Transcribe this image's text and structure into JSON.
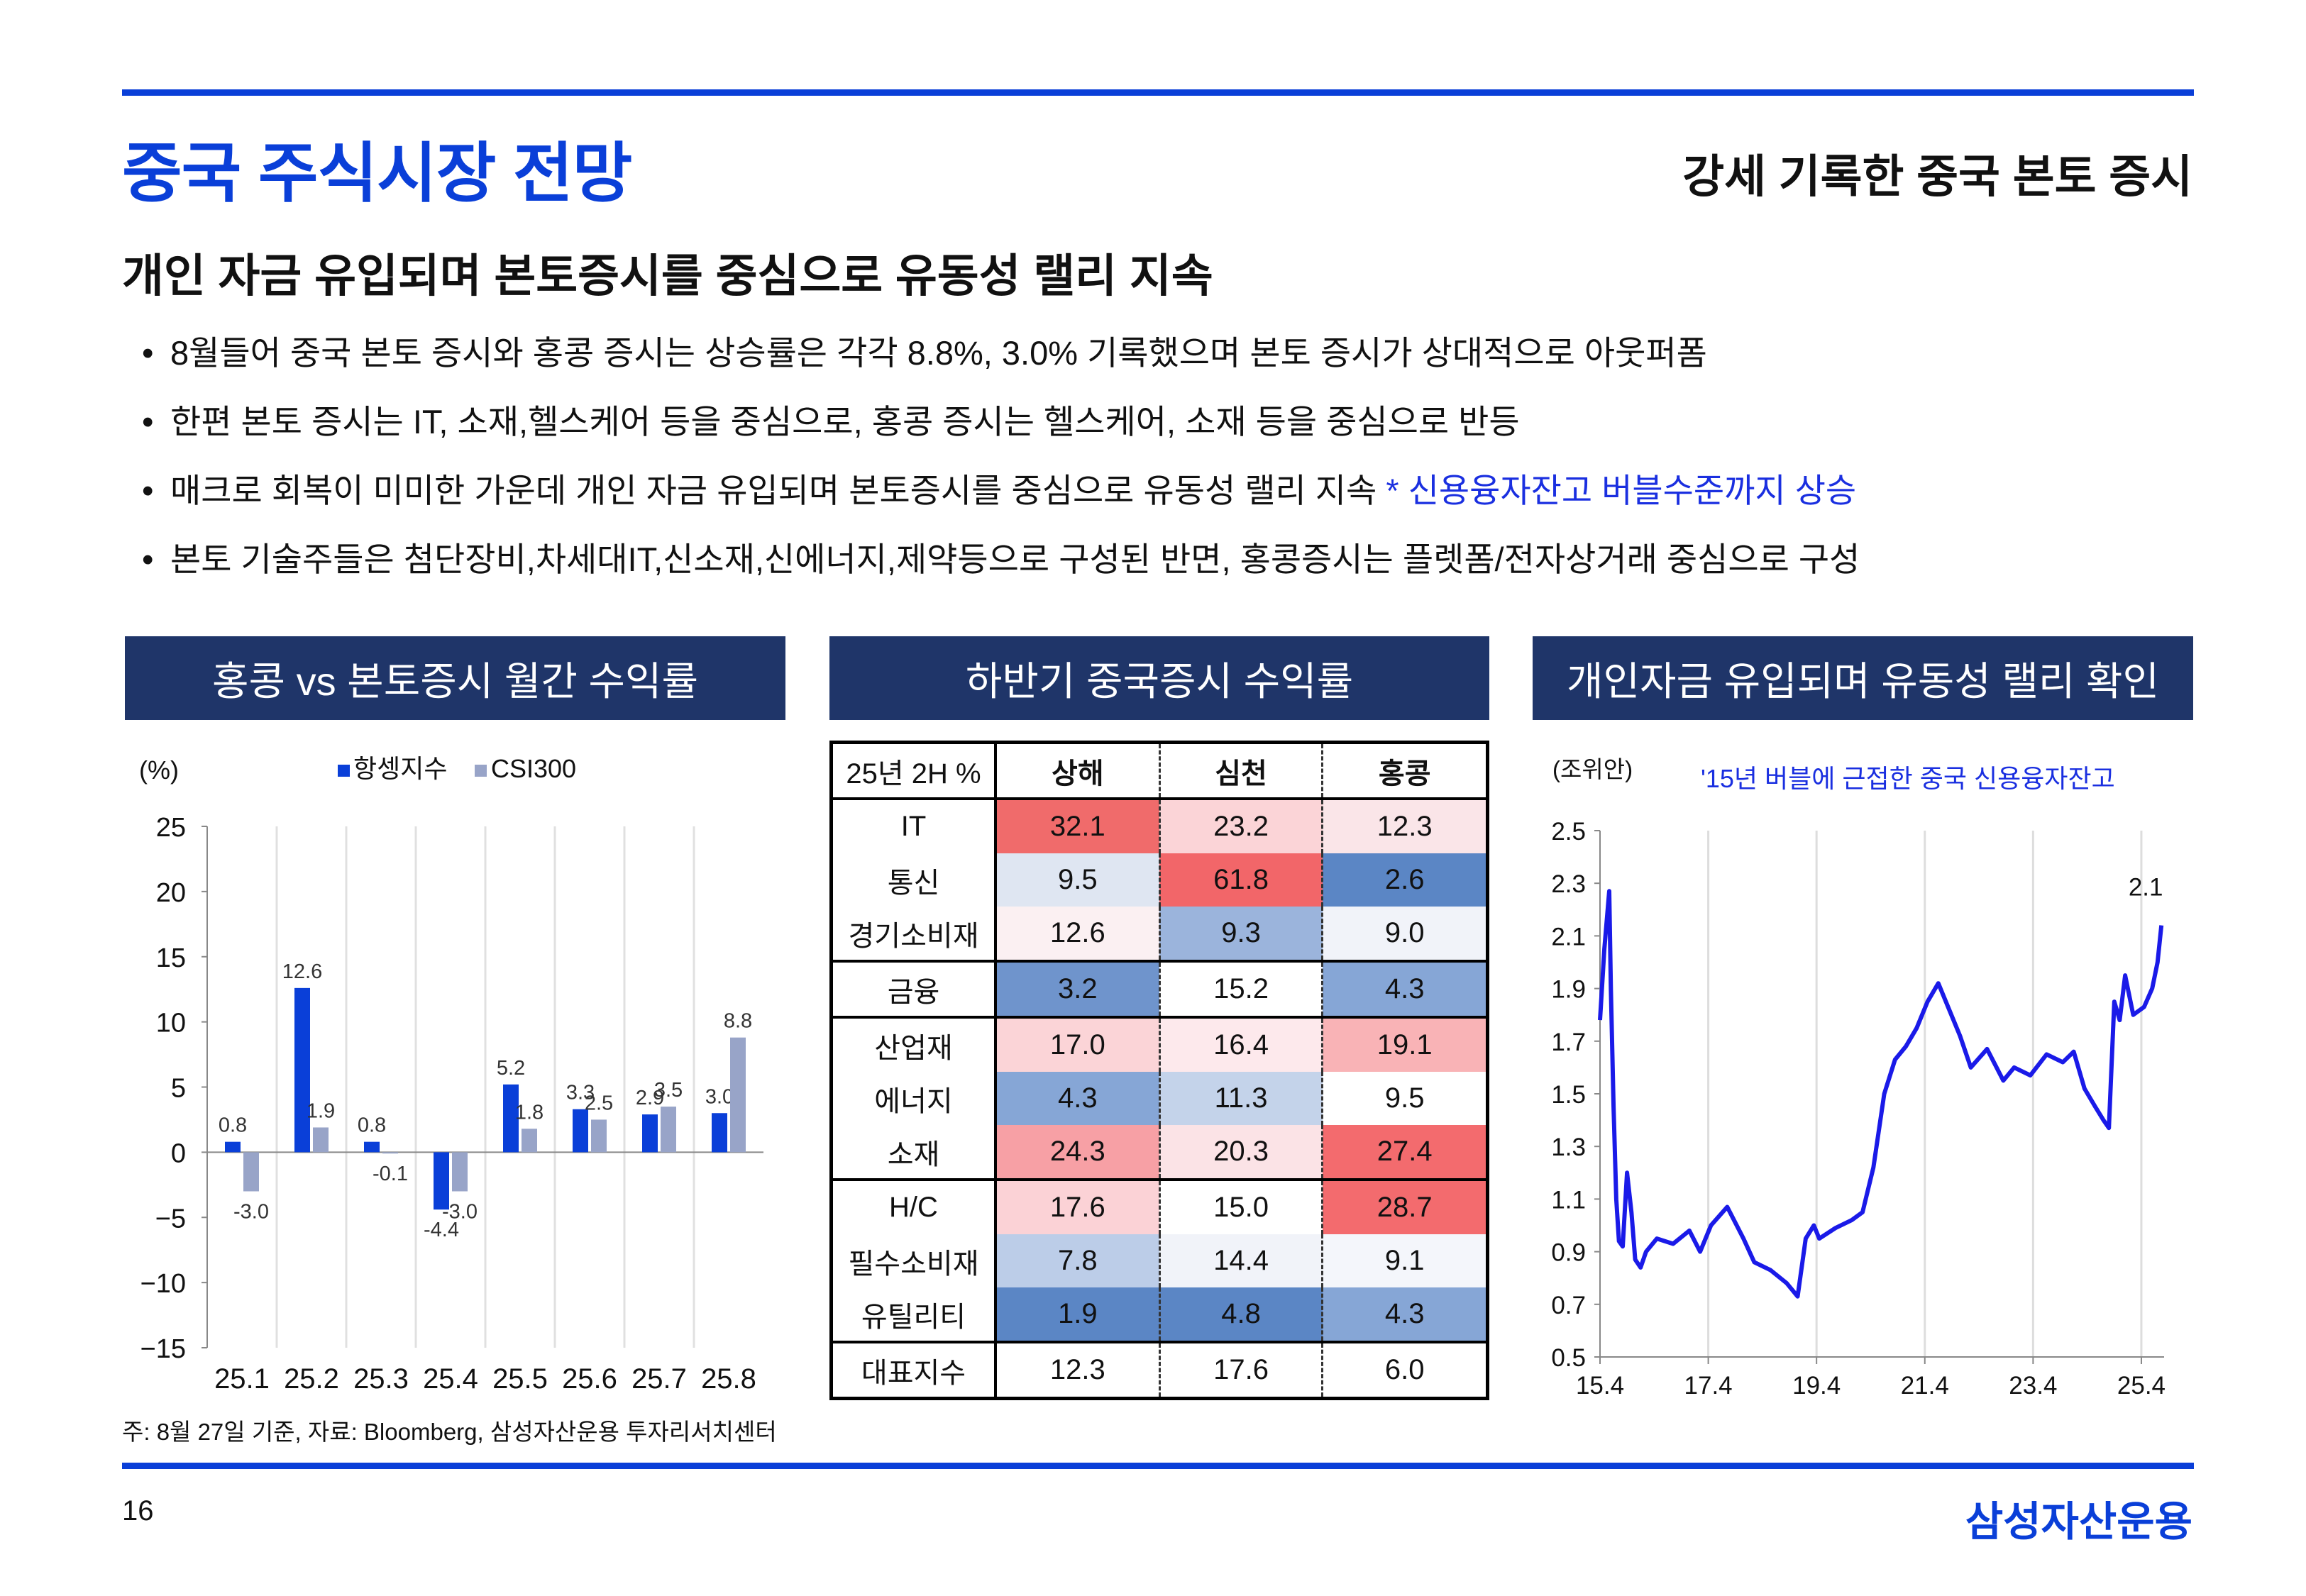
{
  "header": {
    "title": "중국 주식시장 전망",
    "subtitle": "강세 기록한 중국 본토 증시"
  },
  "headline": "개인 자금 유입되며 본토증시를 중심으로 유동성 랠리 지속",
  "bullets": [
    {
      "text": "8월들어 중국 본토 증시와 홍콩 증시는 상승률은 각각 8.8%, 3.0% 기록했으며 본토 증시가 상대적으로 아웃퍼폼",
      "note": ""
    },
    {
      "text": "한편 본토 증시는 IT, 소재,헬스케어 등을 중심으로, 홍콩 증시는 헬스케어, 소재 등을 중심으로 반등",
      "note": ""
    },
    {
      "text": "매크로 회복이 미미한 가운데 개인 자금 유입되며 본토증시를 중심으로 유동성 랠리 지속 ",
      "note": "* 신용융자잔고 버블수준까지 상승"
    },
    {
      "text": "본토 기술주들은 첨단장비,차세대IT,신소재,신에너지,제약등으로 구성된 반면, 홍콩증시는 플렛폼/전자상거래 중심으로 구성",
      "note": ""
    }
  ],
  "panels": {
    "left": "홍콩 vs 본토증시 월간 수익률",
    "middle": "하반기 중국증시 수익률",
    "right": "개인자금 유입되며 유동성 랠리 확인"
  },
  "colors": {
    "brand": "#0a3fd8",
    "panel_header": "#1f3569",
    "hsi_bar": "#0a3fd8",
    "csi_bar": "#98a4c8",
    "line": "#1a1ae8"
  },
  "chart_data": [
    {
      "type": "bar",
      "title": "홍콩 vs 본토증시 월간 수익률",
      "ylabel": "(%)",
      "ylim": [
        -15,
        25
      ],
      "yticks": [
        25,
        20,
        15,
        10,
        5,
        0,
        -5,
        -10,
        -15
      ],
      "ytick_labels": [
        "25",
        "20",
        "15",
        "10",
        "5",
        "0",
        "−5",
        "−10",
        "−15"
      ],
      "categories": [
        "25.1",
        "25.2",
        "25.3",
        "25.4",
        "25.5",
        "25.6",
        "25.7",
        "25.8"
      ],
      "series": [
        {
          "name": "항셍지수",
          "values": [
            0.8,
            12.6,
            0.8,
            -4.4,
            5.2,
            3.3,
            2.9,
            3.0
          ],
          "labels": [
            "0.8",
            "12.6",
            "0.8",
            "-4.4",
            "5.2",
            "3.3",
            "2.9",
            "3.0"
          ]
        },
        {
          "name": "CSI300",
          "values": [
            -3.0,
            1.9,
            -0.1,
            -3.0,
            1.8,
            2.5,
            3.5,
            8.8
          ],
          "labels": [
            "-3.0",
            "1.9",
            "-0.1",
            "-3.0",
            "1.8",
            "2.5",
            "3.5",
            "8.8"
          ]
        }
      ],
      "legend": "top"
    },
    {
      "type": "table",
      "title": "하반기 중국증시 수익률",
      "corner": "25년 2H %",
      "columns": [
        "상해",
        "심천",
        "홍콩"
      ],
      "rows": [
        {
          "label": "IT",
          "values": [
            "32.1",
            "23.2",
            "12.3"
          ],
          "colors": [
            "#f06b6b",
            "#fbd4d7",
            "#fae5e8"
          ]
        },
        {
          "label": "통신",
          "values": [
            "9.5",
            "61.8",
            "2.6"
          ],
          "colors": [
            "#dfe6f2",
            "#f26669",
            "#5b86c5"
          ]
        },
        {
          "label": "경기소비재",
          "values": [
            "12.6",
            "9.3",
            "9.0"
          ],
          "colors": [
            "#fbf0f2",
            "#9bb4dc",
            "#f1f3f9"
          ]
        },
        {
          "label": "금융",
          "values": [
            "3.2",
            "15.2",
            "4.3"
          ],
          "colors": [
            "#6f94cc",
            "#ffffff",
            "#86a6d6"
          ]
        },
        {
          "label": "산업재",
          "values": [
            "17.0",
            "16.4",
            "19.1"
          ],
          "colors": [
            "#fbd4d7",
            "#fde9ec",
            "#f9b3b6"
          ]
        },
        {
          "label": "에너지",
          "values": [
            "4.3",
            "11.3",
            "9.5"
          ],
          "colors": [
            "#86a6d6",
            "#c4d3ea",
            "#ffffff"
          ]
        },
        {
          "label": "소재",
          "values": [
            "24.3",
            "20.3",
            "27.4"
          ],
          "colors": [
            "#f7a0a5",
            "#fbe3e6",
            "#f36b6e"
          ]
        },
        {
          "label": "H/C",
          "values": [
            "17.6",
            "15.0",
            "28.7"
          ],
          "colors": [
            "#fbd2d6",
            "#ffffff",
            "#f36b6e"
          ]
        },
        {
          "label": "필수소비재",
          "values": [
            "7.8",
            "14.4",
            "9.1"
          ],
          "colors": [
            "#bccde8",
            "#f1f3f9",
            "#f4f6fb"
          ]
        },
        {
          "label": "유틸리티",
          "values": [
            "1.9",
            "4.8",
            "4.3"
          ],
          "colors": [
            "#5b86c5",
            "#5b86c5",
            "#86a6d6"
          ]
        },
        {
          "label": "대표지수",
          "values": [
            "12.3",
            "17.6",
            "6.0"
          ],
          "colors": [
            "#ffffff",
            "#ffffff",
            "#ffffff"
          ]
        }
      ]
    },
    {
      "type": "line",
      "title": "개인자금 유입되며 유동성 랠리 확인",
      "ylabel": "(조위안)",
      "annotation": "'15년 버블에 근접한 중국 신용융자잔고",
      "end_label": "2.1",
      "ylim": [
        0.5,
        2.5
      ],
      "yticks": [
        "2.5",
        "2.3",
        "2.1",
        "1.9",
        "1.7",
        "1.5",
        "1.3",
        "1.1",
        "0.9",
        "0.7",
        "0.5"
      ],
      "xlim": [
        2015.25,
        2025.67
      ],
      "xticks": [
        "15.4",
        "17.4",
        "19.4",
        "21.4",
        "23.4",
        "25.4"
      ],
      "series": [
        {
          "name": "신용융자잔고",
          "x": [
            2015.25,
            2015.33,
            2015.42,
            2015.45,
            2015.5,
            2015.55,
            2015.6,
            2015.67,
            2015.75,
            2015.83,
            2015.9,
            2016.0,
            2016.1,
            2016.3,
            2016.6,
            2016.9,
            2017.1,
            2017.3,
            2017.6,
            2017.9,
            2018.1,
            2018.4,
            2018.7,
            2018.9,
            2019.05,
            2019.2,
            2019.3,
            2019.6,
            2019.9,
            2020.1,
            2020.3,
            2020.5,
            2020.7,
            2020.9,
            2021.1,
            2021.3,
            2021.5,
            2021.7,
            2021.9,
            2022.1,
            2022.4,
            2022.7,
            2022.9,
            2023.2,
            2023.5,
            2023.8,
            2024.0,
            2024.2,
            2024.4,
            2024.55,
            2024.65,
            2024.75,
            2024.85,
            2024.95,
            2025.1,
            2025.3,
            2025.45,
            2025.55,
            2025.62
          ],
          "y": [
            1.78,
            2.05,
            2.27,
            1.9,
            1.45,
            1.1,
            0.94,
            0.92,
            1.2,
            1.05,
            0.87,
            0.84,
            0.9,
            0.95,
            0.93,
            0.98,
            0.9,
            1.0,
            1.07,
            0.95,
            0.86,
            0.83,
            0.78,
            0.73,
            0.95,
            1.0,
            0.95,
            0.99,
            1.02,
            1.05,
            1.22,
            1.5,
            1.63,
            1.68,
            1.75,
            1.85,
            1.92,
            1.82,
            1.72,
            1.6,
            1.67,
            1.55,
            1.6,
            1.57,
            1.65,
            1.62,
            1.66,
            1.52,
            1.45,
            1.4,
            1.37,
            1.85,
            1.78,
            1.95,
            1.8,
            1.83,
            1.9,
            2.0,
            2.14
          ]
        }
      ]
    }
  ],
  "footnote": "주: 8월 27일 기준, 자료: Bloomberg, 삼성자산운용 투자리서치센터",
  "page_number": "16",
  "brand": "삼성자산운용"
}
